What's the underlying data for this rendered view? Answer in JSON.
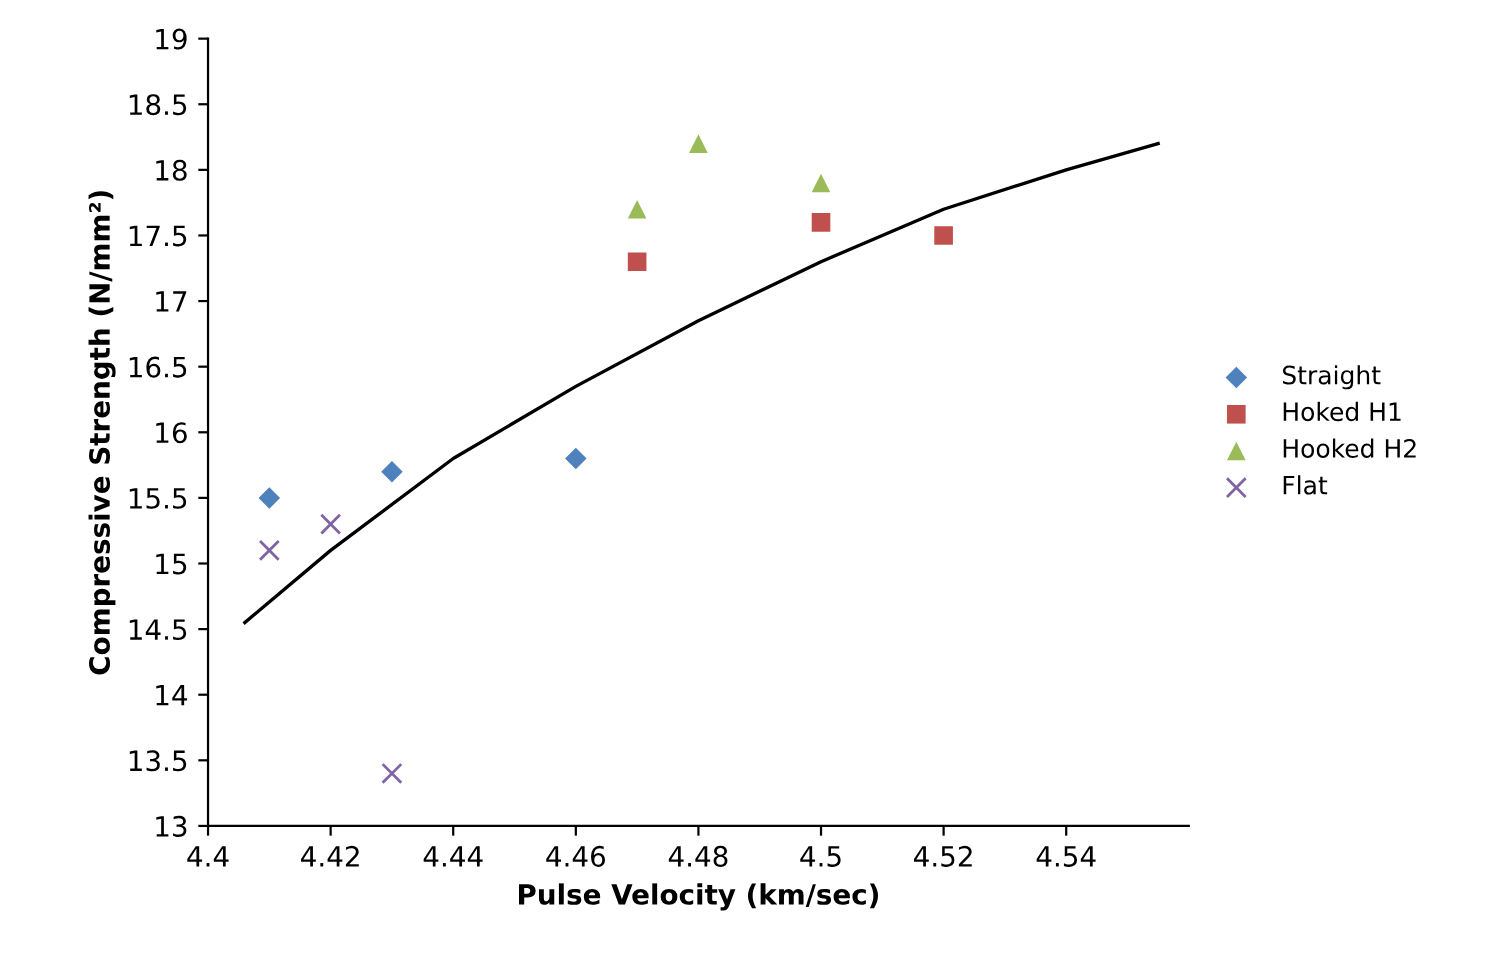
{
  "chart_data": {
    "type": "scatter",
    "xlabel": "Pulse Velocity (km/sec)",
    "ylabel": "Compressive Strength (N/mm²)",
    "xlim": [
      4.4,
      4.56
    ],
    "xticks": [
      4.4,
      4.42,
      4.44,
      4.46,
      4.48,
      4.5,
      4.52,
      4.54
    ],
    "ylim": [
      13,
      19
    ],
    "yticks": [
      13,
      13.5,
      14,
      14.5,
      15,
      15.5,
      16,
      16.5,
      17,
      17.5,
      18,
      18.5,
      19
    ],
    "grid": false,
    "legend": "right",
    "series": [
      {
        "name": "Straight",
        "color": "#4f81bd",
        "marker": "diamond",
        "x": [
          4.41,
          4.43,
          4.46
        ],
        "values": [
          15.5,
          15.7,
          15.8
        ]
      },
      {
        "name": "Hoked H1",
        "color": "#c0504d",
        "marker": "square",
        "x": [
          4.47,
          4.5,
          4.52
        ],
        "values": [
          17.3,
          17.6,
          17.5
        ]
      },
      {
        "name": "Hooked H2",
        "color": "#9bbb59",
        "marker": "triangle",
        "x": [
          4.47,
          4.48,
          4.5
        ],
        "values": [
          17.7,
          18.2,
          17.9
        ]
      },
      {
        "name": "Flat",
        "color": "#8064a2",
        "marker": "cross",
        "x": [
          4.41,
          4.42,
          4.43
        ],
        "values": [
          15.1,
          15.3,
          13.4
        ]
      },
      {
        "type": "line",
        "color": "#000000",
        "marker": "none",
        "line_style": "solid",
        "x": [
          4.406,
          4.42,
          4.44,
          4.46,
          4.48,
          4.5,
          4.52,
          4.54,
          4.555
        ],
        "values": [
          14.55,
          15.1,
          15.8,
          16.35,
          16.85,
          17.3,
          17.7,
          18.0,
          18.2
        ]
      }
    ]
  }
}
